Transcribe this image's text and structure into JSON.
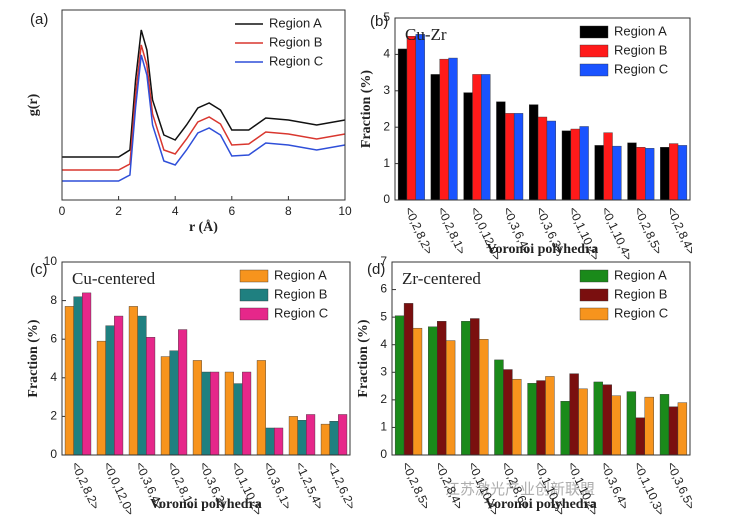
{
  "chart_data": [
    {
      "type": "line",
      "panel_label": "(a)",
      "x_label": "r (Å)",
      "y_label": "g(r)",
      "x": [
        0,
        1,
        2,
        2.4,
        2.6,
        2.8,
        3.0,
        3.2,
        3.6,
        4.0,
        4.4,
        4.8,
        5.2,
        5.6,
        6.0,
        6.6,
        7.2,
        8,
        9,
        10
      ],
      "series": [
        {
          "name": "Region A",
          "color": "#111111",
          "values": [
            0.86,
            0.86,
            0.86,
            1.0,
            2.4,
            3.4,
            3.0,
            2.0,
            1.3,
            1.2,
            1.5,
            1.84,
            1.94,
            1.8,
            1.4,
            1.4,
            1.64,
            1.6,
            1.5,
            1.6
          ]
        },
        {
          "name": "Region B",
          "color": "#d9372f",
          "values": [
            0.6,
            0.6,
            0.6,
            0.72,
            2.1,
            3.1,
            2.7,
            1.72,
            1.0,
            0.92,
            1.22,
            1.56,
            1.66,
            1.52,
            1.1,
            1.12,
            1.36,
            1.32,
            1.22,
            1.32
          ]
        },
        {
          "name": "Region C",
          "color": "#2f4fd9",
          "values": [
            0.38,
            0.38,
            0.38,
            0.5,
            1.85,
            2.9,
            2.5,
            1.5,
            0.78,
            0.7,
            1.0,
            1.34,
            1.44,
            1.3,
            0.88,
            0.9,
            1.14,
            1.1,
            1.0,
            1.1
          ]
        }
      ],
      "xlim": [
        0,
        10
      ],
      "xticks": [
        0,
        2,
        4,
        6,
        8,
        10
      ],
      "ylim": [
        0,
        3.8
      ],
      "legend": "upper right"
    },
    {
      "type": "bar",
      "panel_label": "(b)",
      "title": "Cu-Zr",
      "x_label": "Voronoi polyhedra",
      "y_label": "Fraction (%)",
      "categories": [
        "<0,2,8,2>",
        "<0,2,8,1>",
        "<0,0,12,0>",
        "<0,3,6,4>",
        "<0,3,6,3>",
        "<0,1,10,2>",
        "<0,1,10,4>",
        "<0,2,8,5>",
        "<0,2,8,4>"
      ],
      "series": [
        {
          "name": "Region A",
          "color": "#000000",
          "values": [
            4.15,
            3.45,
            2.95,
            2.7,
            2.62,
            1.9,
            1.5,
            1.57,
            1.45
          ]
        },
        {
          "name": "Region B",
          "color": "#ff1a1a",
          "values": [
            4.5,
            3.87,
            3.45,
            2.38,
            2.28,
            1.95,
            1.85,
            1.45,
            1.55
          ]
        },
        {
          "name": "Region C",
          "color": "#1a53ff",
          "values": [
            4.55,
            3.9,
            3.45,
            2.38,
            2.17,
            2.02,
            1.48,
            1.42,
            1.5
          ]
        }
      ],
      "ylim": [
        0,
        5
      ],
      "yticks": [
        0,
        1,
        2,
        3,
        4,
        5
      ],
      "legend": "upper right"
    },
    {
      "type": "bar",
      "panel_label": "(c)",
      "title": "Cu-centered",
      "x_label": "Voronoi polyhedra",
      "y_label": "Fraction (%)",
      "categories": [
        "<0,2,8,2>",
        "<0,0,12,0>",
        "<0,3,6,4>",
        "<0,2,8,1>",
        "<0,3,6,3>",
        "<0,1,10,2>",
        "<0,3,6,1>",
        "<1,2,5,4>",
        "<1,2,6,2>"
      ],
      "series": [
        {
          "name": "Region A",
          "color": "#f7941d",
          "values": [
            7.7,
            5.9,
            7.7,
            5.1,
            4.9,
            4.3,
            4.9,
            2.0,
            1.6
          ]
        },
        {
          "name": "Region B",
          "color": "#1f8080",
          "values": [
            8.2,
            6.7,
            7.2,
            5.4,
            4.3,
            3.7,
            1.4,
            1.8,
            1.75
          ]
        },
        {
          "name": "Region C",
          "color": "#e6278a",
          "values": [
            8.4,
            7.2,
            6.1,
            6.5,
            4.3,
            4.3,
            1.4,
            2.1,
            2.1
          ]
        }
      ],
      "ylim": [
        0,
        10
      ],
      "yticks": [
        0,
        2,
        4,
        6,
        8,
        10
      ],
      "legend": "upper right"
    },
    {
      "type": "bar",
      "panel_label": "(d)",
      "title": "Zr-centered",
      "x_label": "Voronoi polyhedra",
      "y_label": "Fraction (%)",
      "categories": [
        "<0,2,8,5>",
        "<0,2,8,4>",
        "<0,1,10,4>",
        "<0,2,8,6>",
        "<0,1,10,5>",
        "<0,1,10,2>",
        "<0,3,6,4>",
        "<0,1,10,3>",
        "<0,3,6,5>"
      ],
      "series": [
        {
          "name": "Region A",
          "color": "#1a8a1a",
          "values": [
            5.05,
            4.65,
            4.85,
            3.45,
            2.6,
            1.95,
            2.65,
            2.3,
            2.2
          ]
        },
        {
          "name": "Region B",
          "color": "#7a0f0f",
          "values": [
            5.5,
            4.85,
            4.95,
            3.1,
            2.7,
            2.95,
            2.55,
            1.35,
            1.75
          ]
        },
        {
          "name": "Region C",
          "color": "#f7941d",
          "values": [
            4.6,
            4.15,
            4.2,
            2.75,
            2.85,
            2.4,
            2.15,
            2.1,
            1.9
          ]
        }
      ],
      "ylim": [
        0,
        7
      ],
      "yticks": [
        0,
        1,
        2,
        3,
        4,
        5,
        6,
        7
      ],
      "legend": "upper right"
    }
  ],
  "watermark": "江苏激光产业创新联盟"
}
